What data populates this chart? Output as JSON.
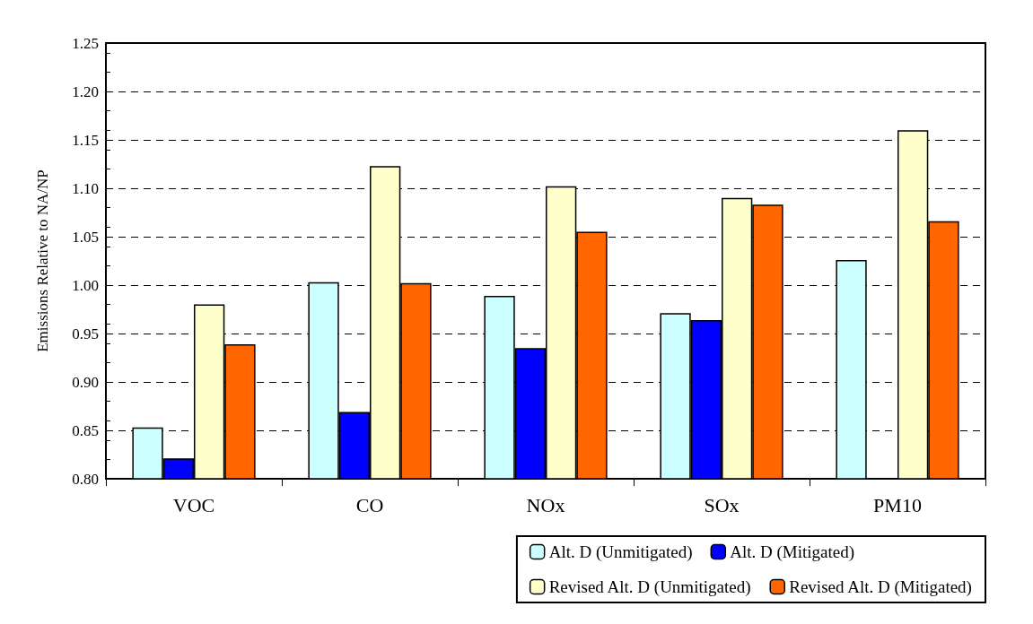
{
  "chart_data": {
    "type": "bar",
    "ylabel": "Emissions Relative to NA/NP",
    "categories": [
      "VOC",
      "CO",
      "NOx",
      "SOx",
      "PM10"
    ],
    "series": [
      {
        "name": "Alt. D (Unmitigated)",
        "color": "#ccffff",
        "values": [
          0.853,
          1.003,
          0.989,
          0.971,
          1.026
        ]
      },
      {
        "name": "Alt. D (Mitigated)",
        "color": "#0000ff",
        "values": [
          0.821,
          0.869,
          0.935,
          0.964,
          null
        ]
      },
      {
        "name": "Revised Alt. D (Unmitigated)",
        "color": "#ffffcc",
        "values": [
          0.98,
          1.123,
          1.102,
          1.09,
          1.16
        ]
      },
      {
        "name": "Revised Alt. D (Mitigated)",
        "color": "#ff6600",
        "values": [
          0.939,
          1.002,
          1.055,
          1.083,
          1.066
        ]
      }
    ],
    "ylim": [
      0.8,
      1.25
    ],
    "yticks": [
      {
        "value": 0.8,
        "label": "0.80"
      },
      0.85,
      {
        "value": 0.9,
        "label": "0.90"
      },
      0.95,
      {
        "value": 1.0,
        "label": "1.00"
      },
      1.05,
      {
        "value": 1.1,
        "label": "1.10"
      },
      1.15,
      {
        "value": 1.2,
        "label": "1.20"
      },
      1.25
    ],
    "grid": "y",
    "legend": "bottom right"
  }
}
